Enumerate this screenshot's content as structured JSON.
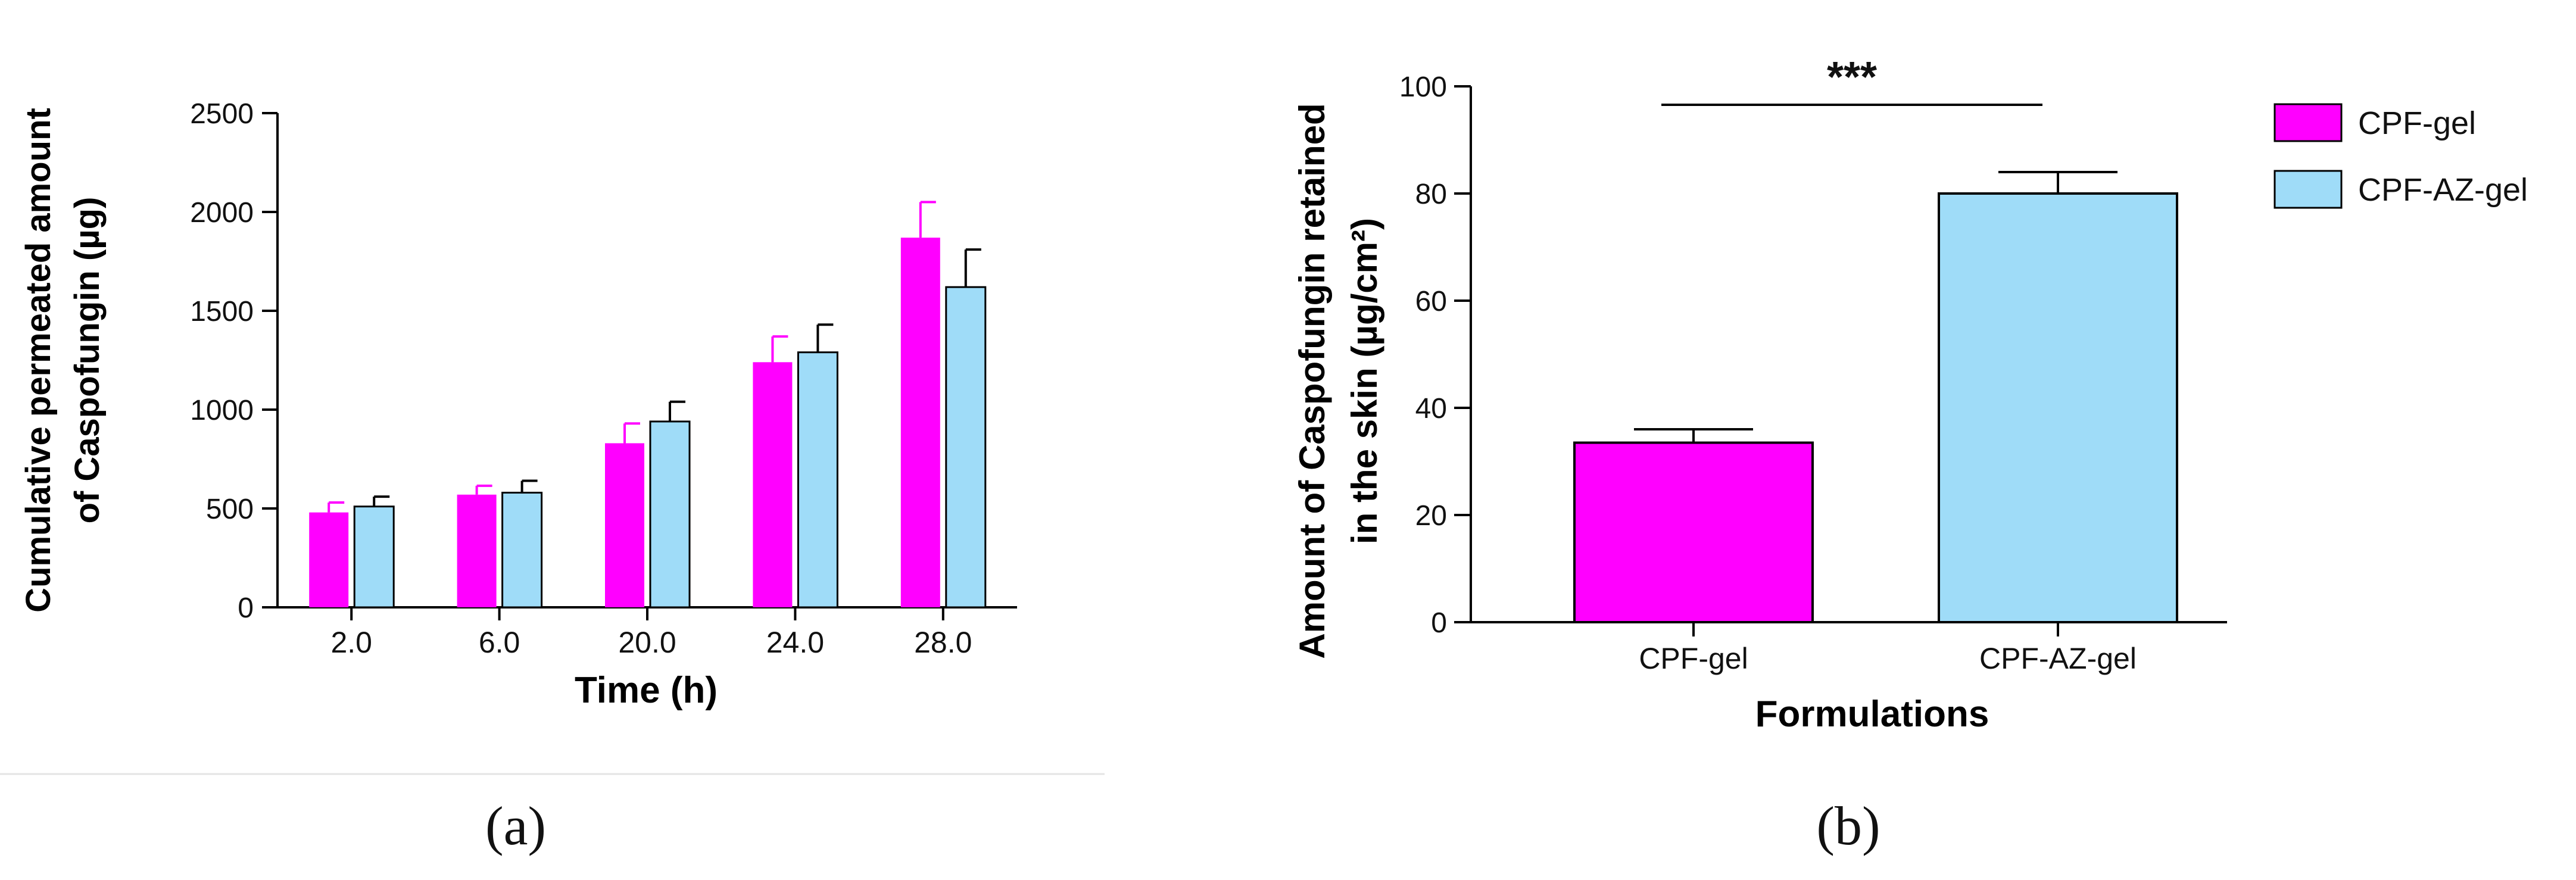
{
  "chart_data": [
    {
      "type": "bar",
      "panel_label": "(a)",
      "title": "",
      "xlabel": "Time (h)",
      "ylabel_line1": "Cumulative permeated amount",
      "ylabel_line2": "of Caspofungin (µg)",
      "categories": [
        "2.0",
        "6.0",
        "20.0",
        "24.0",
        "28.0"
      ],
      "ylim": [
        0,
        2500
      ],
      "yticks": [
        0,
        500,
        1000,
        1500,
        2000,
        2500
      ],
      "ytick_labels": [
        "0",
        "500",
        "1000",
        "1500",
        "2000",
        "2500"
      ],
      "series": [
        {
          "color": "#ff00ff",
          "values": [
            480,
            570,
            830,
            1240,
            1870
          ],
          "errors": [
            50,
            45,
            100,
            130,
            180
          ]
        },
        {
          "color": "#9fdcf8",
          "values": [
            510,
            580,
            940,
            1290,
            1620
          ],
          "errors": [
            50,
            60,
            100,
            140,
            190
          ]
        }
      ],
      "grid": false,
      "legend": "none"
    },
    {
      "type": "bar",
      "panel_label": "(b)",
      "title": "",
      "xlabel": "Formulations",
      "ylabel_line1": "Amount of Caspofungin retained",
      "ylabel_line2": "in the skin (µg/cm²)",
      "categories": [
        "CPF-gel",
        "CPF-AZ-gel"
      ],
      "ylim": [
        0,
        100
      ],
      "yticks": [
        0,
        20,
        40,
        60,
        80,
        100
      ],
      "ytick_labels": [
        "0",
        "20",
        "40",
        "60",
        "80",
        "100"
      ],
      "values": [
        33.5,
        80
      ],
      "errors": [
        2.5,
        4
      ],
      "colors": [
        "#ff00ff",
        "#9fdcf8"
      ],
      "significance": "***",
      "legend": "top-right",
      "legend_entries": [
        {
          "label": "CPF-gel",
          "color": "#ff00ff"
        },
        {
          "label": "CPF-AZ-gel",
          "color": "#9fdcf8"
        }
      ],
      "grid": false
    }
  ]
}
